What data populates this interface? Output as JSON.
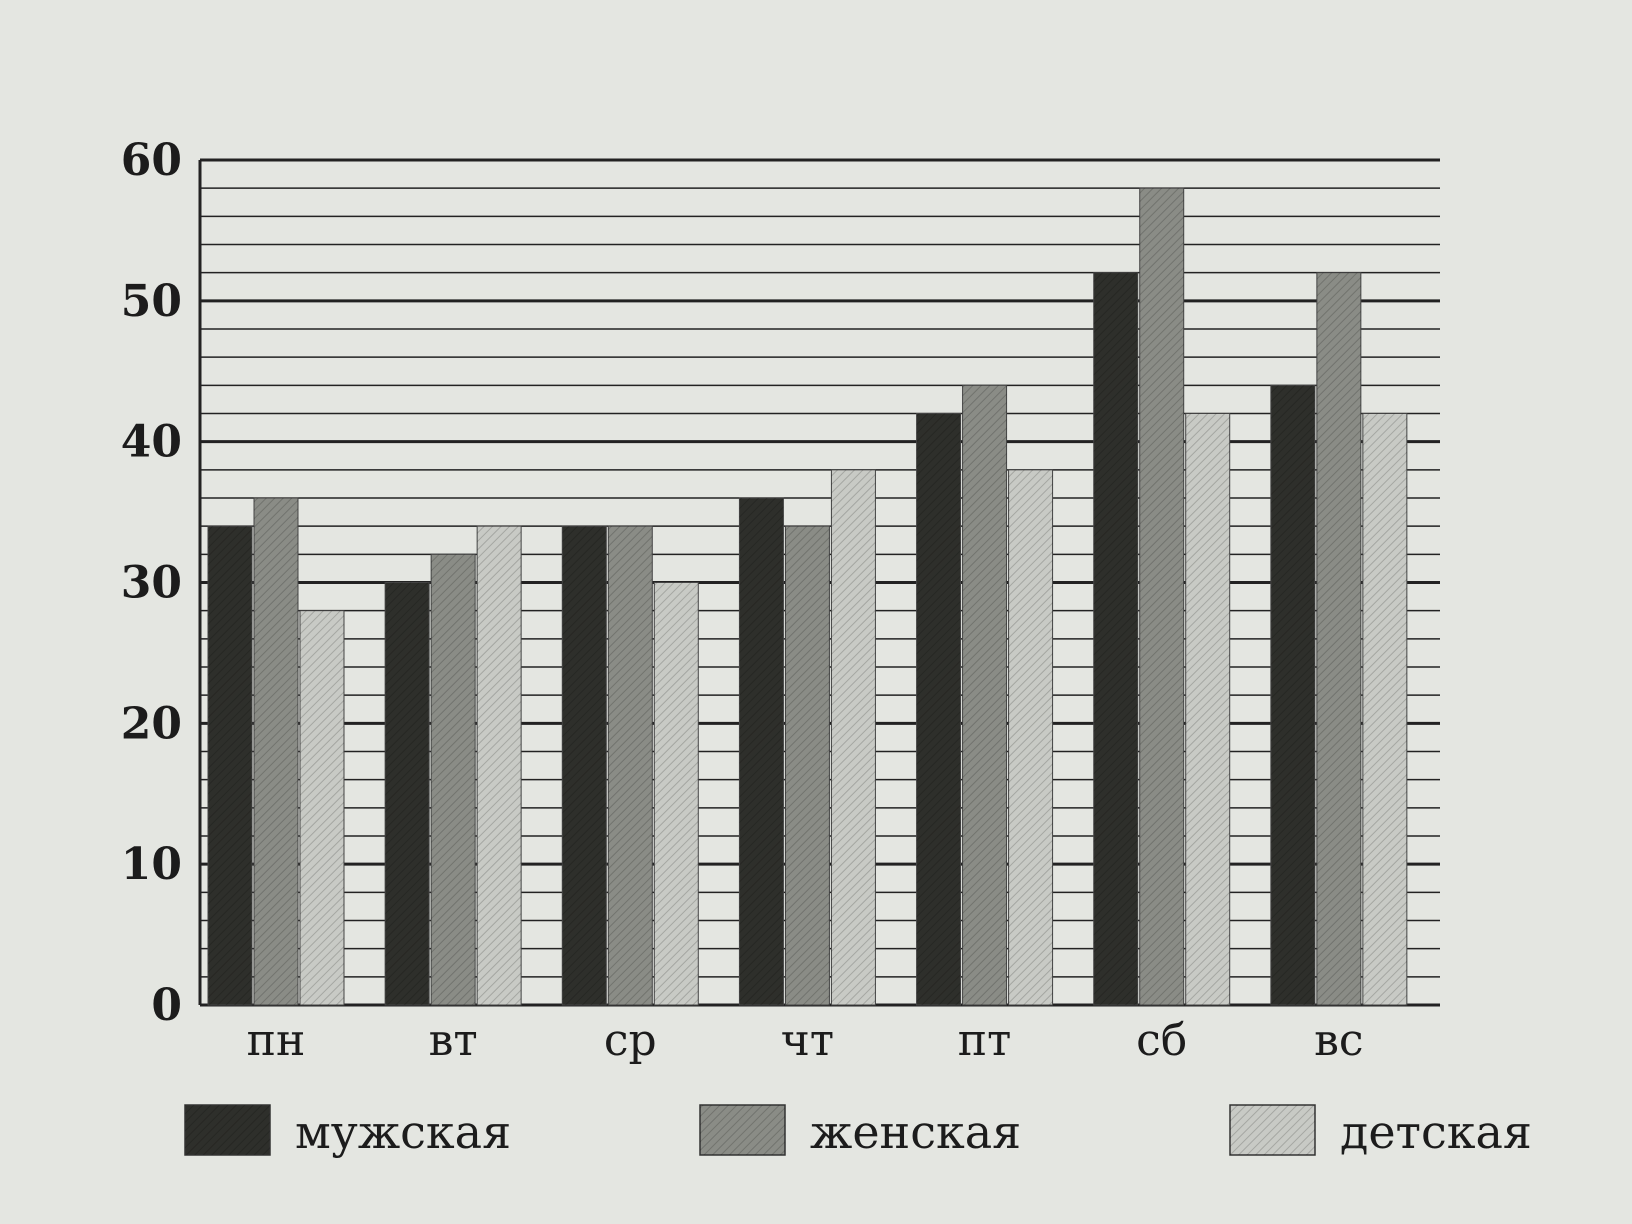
{
  "chart_data": {
    "type": "bar",
    "title": "",
    "xlabel": "",
    "ylabel": "",
    "categories": [
      "пн",
      "вт",
      "ср",
      "чт",
      "пт",
      "сб",
      "вс"
    ],
    "series": [
      {
        "name": "мужская",
        "color": "#2e2f2b",
        "values": [
          34,
          30,
          34,
          36,
          42,
          52,
          44
        ]
      },
      {
        "name": "женская",
        "color": "#8a8c86",
        "values": [
          36,
          32,
          34,
          34,
          44,
          58,
          52
        ]
      },
      {
        "name": "детская",
        "color": "#c8cac5",
        "values": [
          28,
          34,
          30,
          38,
          38,
          42,
          42
        ]
      }
    ],
    "ylim": [
      0,
      60
    ],
    "yticks": [
      0,
      10,
      20,
      30,
      40,
      50,
      60
    ],
    "minor_grid_step": 2,
    "grid": true,
    "legend_position": "bottom"
  }
}
